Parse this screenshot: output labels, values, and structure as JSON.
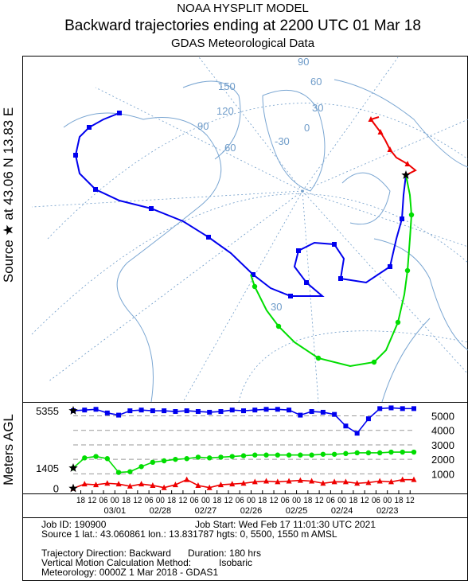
{
  "header": {
    "model": "NOAA HYSPLIT MODEL",
    "title": "Backward trajectories ending at 2200 UTC 01 Mar 18",
    "subtitle": "GDAS Meteorological Data"
  },
  "source_label": "Source ★ at 43.06 N 13.83 E",
  "map": {
    "grid_labels": [
      "150",
      "120",
      "90",
      "60",
      "-30",
      "0",
      "30",
      "60",
      "90",
      "30"
    ]
  },
  "chart_data": {
    "type": "line",
    "y_label": "Meters AGL",
    "x": [
      0,
      6,
      12,
      18,
      24,
      30,
      36,
      42,
      48,
      54,
      60,
      66,
      72,
      78,
      84,
      90,
      96,
      102,
      108,
      114,
      120,
      126,
      132,
      138,
      144,
      150,
      156,
      162,
      168,
      174,
      180
    ],
    "xlim": [
      0,
      180
    ],
    "ylim": [
      -350,
      5850
    ],
    "yticks": [
      1000,
      2000,
      3000,
      4000,
      5000
    ],
    "grid": true,
    "xticks": [
      {
        "value": 4,
        "label": "18"
      },
      {
        "value": 10,
        "label": "12"
      },
      {
        "value": 16,
        "label": "06"
      },
      {
        "value": 22,
        "label": "00"
      },
      {
        "value": 28,
        "label": "18"
      },
      {
        "value": 34,
        "label": "12"
      },
      {
        "value": 40,
        "label": "06"
      },
      {
        "value": 46,
        "label": "00"
      },
      {
        "value": 52,
        "label": "18"
      },
      {
        "value": 58,
        "label": "12"
      },
      {
        "value": 64,
        "label": "06"
      },
      {
        "value": 70,
        "label": "00"
      },
      {
        "value": 76,
        "label": "18"
      },
      {
        "value": 82,
        "label": "12"
      },
      {
        "value": 88,
        "label": "06"
      },
      {
        "value": 94,
        "label": "00"
      },
      {
        "value": 100,
        "label": "18"
      },
      {
        "value": 106,
        "label": "12"
      },
      {
        "value": 112,
        "label": "06"
      },
      {
        "value": 118,
        "label": "00"
      },
      {
        "value": 124,
        "label": "18"
      },
      {
        "value": 130,
        "label": "12"
      },
      {
        "value": 136,
        "label": "06"
      },
      {
        "value": 142,
        "label": "00"
      },
      {
        "value": 148,
        "label": "18"
      },
      {
        "value": 154,
        "label": "12"
      },
      {
        "value": 160,
        "label": "06"
      },
      {
        "value": 166,
        "label": "00"
      },
      {
        "value": 172,
        "label": "18"
      },
      {
        "value": 178,
        "label": "12"
      }
    ],
    "date_ticks": [
      {
        "value": 22,
        "label": "03/01"
      },
      {
        "value": 46,
        "label": "02/28"
      },
      {
        "value": 70,
        "label": "02/27"
      },
      {
        "value": 94,
        "label": "02/26"
      },
      {
        "value": 118,
        "label": "02/25"
      },
      {
        "value": 142,
        "label": "02/24"
      },
      {
        "value": 166,
        "label": "02/23"
      }
    ],
    "series": [
      {
        "color": "#0000ee",
        "marker": "square",
        "values": [
          5355,
          5400,
          5450,
          5200,
          5050,
          5350,
          5400,
          5350,
          5350,
          5300,
          5350,
          5300,
          5250,
          5300,
          5400,
          5350,
          5400,
          5450,
          5450,
          5400,
          5050,
          5300,
          5250,
          5100,
          4300,
          3800,
          4800,
          5500,
          5550,
          5500,
          5500
        ]
      },
      {
        "color": "#00dd00",
        "marker": "circle",
        "values": [
          1405,
          2100,
          2200,
          2050,
          1100,
          1150,
          1500,
          1800,
          1900,
          2000,
          2050,
          2150,
          2100,
          2150,
          2200,
          2250,
          2300,
          2300,
          2300,
          2300,
          2300,
          2300,
          2350,
          2350,
          2400,
          2450,
          2450,
          2450,
          2500,
          2500,
          2500
        ]
      },
      {
        "color": "#ee0000",
        "marker": "triangle",
        "values": [
          0,
          300,
          250,
          350,
          300,
          150,
          300,
          200,
          50,
          250,
          600,
          200,
          50,
          250,
          300,
          350,
          450,
          500,
          450,
          500,
          550,
          500,
          350,
          450,
          450,
          350,
          400,
          500,
          450,
          600,
          600
        ]
      }
    ]
  },
  "footer": {
    "job_id": "Job ID: 190900",
    "job_start": "Job Start: Wed Feb 17 11:01:30 UTC 2021",
    "source": "Source 1 lat.: 43.060861  lon.: 13.831787  hgts: 0, 5500, 1550 m AMSL",
    "direction": "Trajectory Direction: Backward",
    "duration": "Duration: 180 hrs",
    "vertical": "Vertical Motion Calculation Method:",
    "method": "Isobaric",
    "meteorology": "Meteorology: 0000Z  1 Mar 2018 - GDAS1"
  }
}
